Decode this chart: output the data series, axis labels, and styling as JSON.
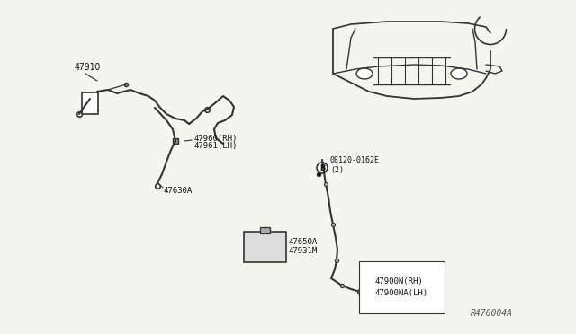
{
  "bg_color": "#f5f5f0",
  "line_color": "#333333",
  "label_color": "#111111",
  "fig_width": 6.4,
  "fig_height": 3.72,
  "dpi": 100,
  "watermark": "R476004A",
  "parts": {
    "top_left_label": "47910",
    "mid_left_label1": "47960(RH)",
    "mid_left_label2": "47961(LH)",
    "bottom_left_label": "47630A",
    "bolt_label": "08120-0162E\n(2)",
    "bolt_circle": "B",
    "right_label1": "47900N(RH)",
    "right_label2": "47900NA(LH)",
    "box_label1": "47650A",
    "box_label2": "47931M"
  }
}
